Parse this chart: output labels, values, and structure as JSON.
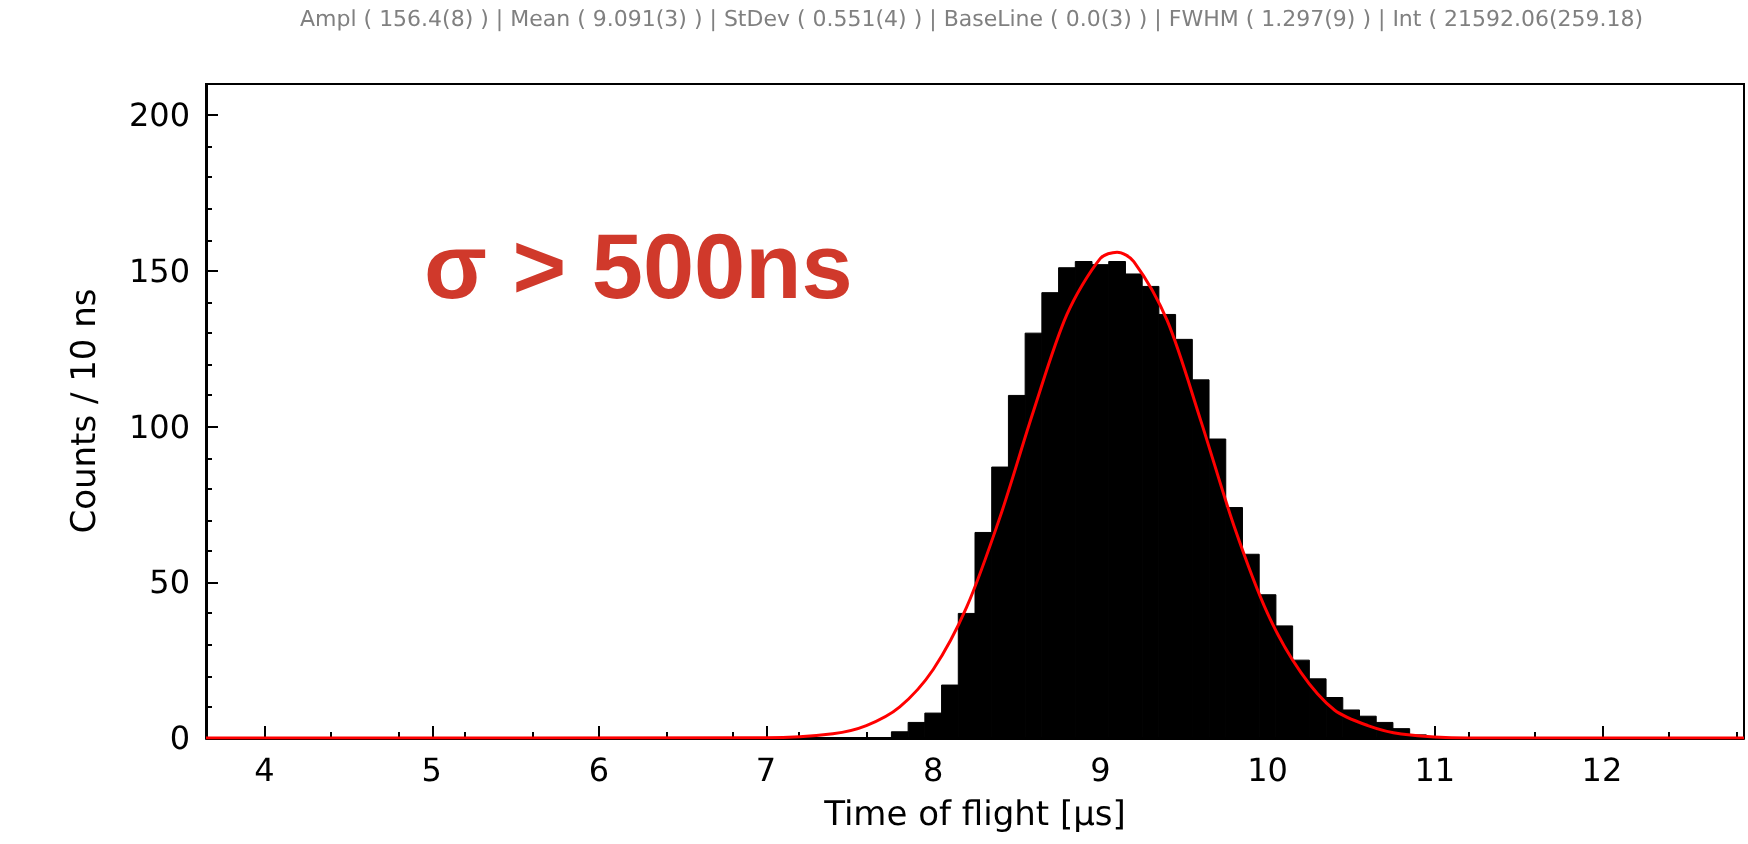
{
  "chart_data": {
    "type": "histogram",
    "annotations": [
      "Ampl ( 156.4(8) ) | Mean ( 9.091(3) ) | StDev ( 0.551(4) ) | BaseLine ( 0.0(3) ) | FWHM ( 1.297(9) ) | Int ( 21592.06(259.18)",
      "σ > 500ns"
    ],
    "xlabel": "Time of flight [µs]",
    "ylabel": "Counts / 10 ns",
    "bins": [
      7.75,
      7.85,
      7.95,
      8.05,
      8.15,
      8.25,
      8.35,
      8.45,
      8.55,
      8.65,
      8.75,
      8.85,
      8.95,
      9.05,
      9.15,
      9.25,
      9.35,
      9.45,
      9.55,
      9.65,
      9.75,
      9.85,
      9.95,
      10.05,
      10.15,
      10.25,
      10.35,
      10.45,
      10.55,
      10.65,
      10.75,
      10.85,
      10.95
    ],
    "values": [
      2,
      5,
      8,
      17,
      40,
      66,
      87,
      110,
      130,
      143,
      151,
      153,
      152,
      153,
      149,
      145,
      136,
      128,
      115,
      96,
      74,
      59,
      46,
      36,
      25,
      19,
      13,
      9,
      7,
      5,
      3,
      1
    ],
    "color": "#000000",
    "series": [
      {
        "type": "line",
        "color": "#ff0000",
        "x": [
          3.65,
          7.0,
          7.4,
          7.6,
          7.8,
          8.0,
          8.2,
          8.4,
          8.6,
          8.8,
          9.0,
          9.1,
          9.2,
          9.4,
          9.6,
          9.8,
          10.0,
          10.2,
          10.4,
          10.6,
          10.8,
          11.2,
          12.85
        ],
        "values": [
          0,
          0.1,
          1.4,
          4,
          10,
          22,
          42,
          71,
          105,
          136,
          154,
          156,
          153,
          134,
          102,
          68,
          40,
          21,
          9,
          4,
          1.3,
          0,
          0
        ]
      }
    ],
    "xlim": [
      3.65,
      12.85
    ],
    "xticks": [
      4,
      5,
      6,
      7,
      8,
      9,
      10,
      11,
      12
    ],
    "ylim": [
      0,
      210
    ],
    "yticks": [
      0,
      50,
      100,
      150,
      200
    ],
    "grid": false
  }
}
